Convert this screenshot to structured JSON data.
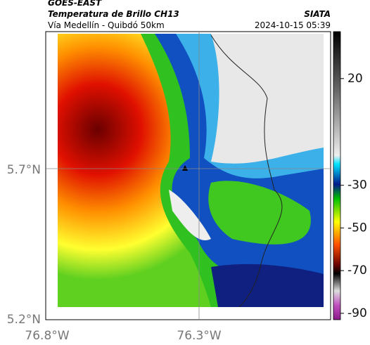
{
  "header": {
    "source": "GOES-EAST",
    "title": "Temperatura de Brillo CH13",
    "credit": "SIATA",
    "subtitle": "Vía Medellín - Quibdó 50km",
    "timestamp": "2024-10-15 05:39"
  },
  "axes": {
    "lat_ticks": [
      "5.7°N",
      "5.2°N"
    ],
    "lon_ticks": [
      "76.8°W",
      "76.3°W"
    ]
  },
  "colorbar": {
    "lim": [
      -93,
      42
    ],
    "ticks": [
      20,
      -30,
      -50,
      -70,
      -90
    ]
  }
}
